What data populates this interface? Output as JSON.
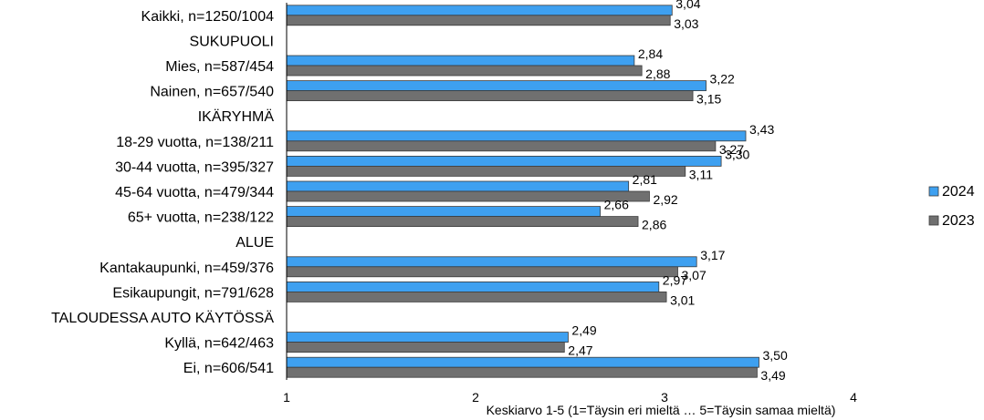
{
  "chart_data": {
    "type": "bar",
    "orientation": "horizontal",
    "xlabel": "Keskiarvo 1-5 (1=Täysin eri mieltä … 5=Täysin samaa mieltä)",
    "xlim": [
      1,
      4
    ],
    "xticks": [
      "1",
      "2",
      "3",
      "4"
    ],
    "legend_position": "right",
    "grid": false,
    "categories": [
      "Kaikki, n=1250/1004",
      "SUKUPUOLI",
      "Mies, n=587/454",
      "Nainen, n=657/540",
      "IKÄRYHMÄ",
      "18-29 vuotta, n=138/211",
      "30-44 vuotta, n=395/327",
      "45-64 vuotta, n=479/344",
      "65+ vuotta, n=238/122",
      "ALUE",
      "Kantakaupunki, n=459/376",
      "Esikaupungit, n=791/628",
      "TALOUDESSA AUTO KÄYTÖSSÄ",
      "Kyllä, n=642/463",
      "Ei, n=606/541"
    ],
    "series": [
      {
        "name": "2024",
        "color": "#3ea0f0",
        "values": [
          3.04,
          null,
          2.84,
          3.22,
          null,
          3.43,
          3.3,
          2.81,
          2.66,
          null,
          3.17,
          2.97,
          null,
          2.49,
          3.5
        ],
        "labels": [
          "3,04",
          "",
          "2,84",
          "3,22",
          "",
          "3,43",
          "3,30",
          "2,81",
          "2,66",
          "",
          "3,17",
          "2,97",
          "",
          "2,49",
          "3,50"
        ]
      },
      {
        "name": "2023",
        "color": "#707070",
        "values": [
          3.03,
          null,
          2.88,
          3.15,
          null,
          3.27,
          3.11,
          2.92,
          2.86,
          null,
          3.07,
          3.01,
          null,
          2.47,
          3.49
        ],
        "labels": [
          "3,03",
          "",
          "2,88",
          "3,15",
          "",
          "3,27",
          "3,11",
          "2,92",
          "2,86",
          "",
          "3,07",
          "3,01",
          "",
          "2,47",
          "3,49"
        ]
      }
    ]
  }
}
